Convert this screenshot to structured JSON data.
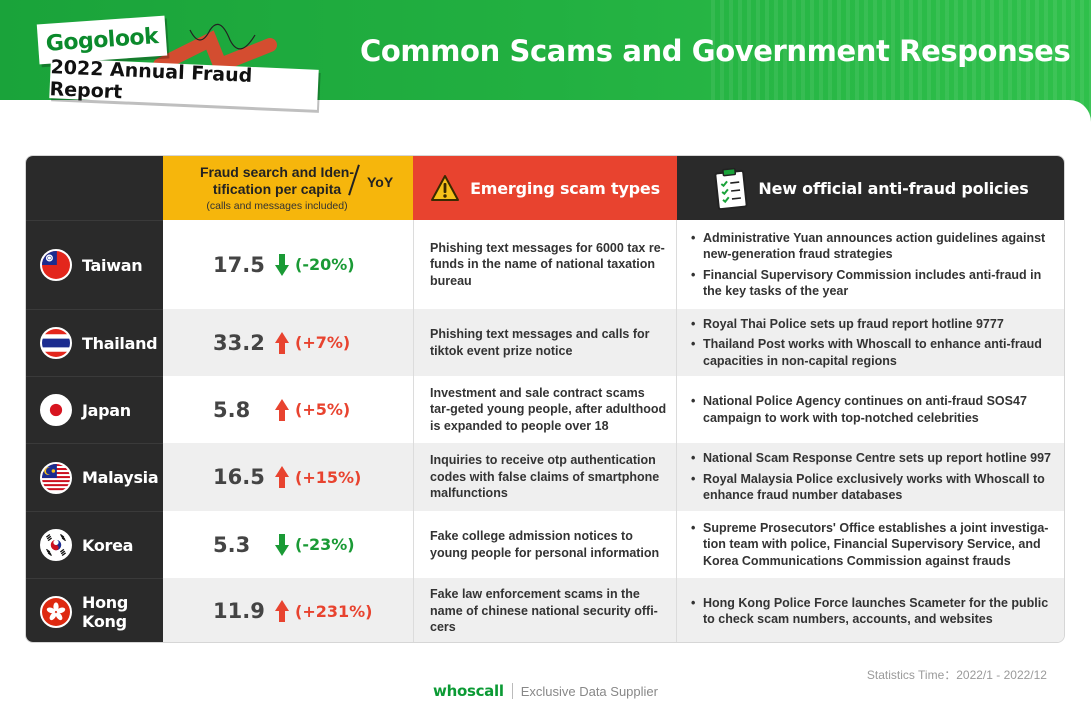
{
  "brand": {
    "logo_text": "Gogolook",
    "report_title": "2022 Annual Fraud Report"
  },
  "title": "Common Scams and Government Responses",
  "table": {
    "headers": {
      "search_line1": "Fraud search and Iden-",
      "search_line2": "tification per capita",
      "search_note": "(calls and messages included)",
      "yoy": "YoY",
      "scam": "Emerging scam types",
      "policy": "New official anti-fraud policies"
    },
    "rows": [
      {
        "country": "Taiwan",
        "flag_icon": "taiwan-flag-icon",
        "value": "17.5",
        "trend": "down",
        "change": "(-20%)",
        "scam": "Phishing text messages for 6000 tax re-funds in the name of national taxation bureau",
        "policies": [
          "Administrative Yuan announces action guidelines against new-generation fraud strategies",
          "Financial Supervisory Commission includes anti-fraud in the key tasks of the year"
        ]
      },
      {
        "country": "Thailand",
        "flag_icon": "thailand-flag-icon",
        "value": "33.2",
        "trend": "up",
        "change": "(+7%)",
        "scam": "Phishing text messages and calls for tiktok event prize notice",
        "policies": [
          "Royal Thai Police sets up fraud report hotline 9777",
          "Thailand Post works with Whoscall to enhance anti-fraud capacities in non-capital regions"
        ]
      },
      {
        "country": "Japan",
        "flag_icon": "japan-flag-icon",
        "value": "5.8",
        "trend": "up",
        "change": "(+5%)",
        "scam": "Investment and sale contract scams tar-geted young people, after adulthood is expanded to people over 18",
        "policies": [
          "National Police Agency continues on anti-fraud SOS47 campaign to work with top-notched celebrities"
        ]
      },
      {
        "country": "Malaysia",
        "flag_icon": "malaysia-flag-icon",
        "value": "16.5",
        "trend": "up",
        "change": "(+15%)",
        "scam": "Inquiries to receive otp authentication codes with false claims of smartphone malfunctions",
        "policies": [
          "National Scam Response Centre sets up report hotline 997",
          "Royal Malaysia Police exclusively works with Whoscall to enhance fraud number databases"
        ]
      },
      {
        "country": "Korea",
        "flag_icon": "korea-flag-icon",
        "value": "5.3",
        "trend": "down",
        "change": "(-23%)",
        "scam": "Fake college admission notices to young people for personal information",
        "policies": [
          "Supreme Prosecutors' Office establishes a joint investiga-tion team with police, Financial Supervisory Service, and Korea Communications Commission against frauds"
        ]
      },
      {
        "country": "Hong Kong",
        "flag_icon": "hong-kong-flag-icon",
        "value": "11.9",
        "trend": "up",
        "change": "(+231%)",
        "scam": "Fake law enforcement scams in the name of chinese national security offi-cers",
        "policies": [
          "Hong Kong Police Force launches Scameter for the public to check scam numbers, accounts, and websites"
        ]
      }
    ]
  },
  "stats_time": "Statistics Time：2022/1 - 2022/12",
  "footer": {
    "brand": "whoscall",
    "supplier": "Exclusive Data Supplier"
  },
  "colors": {
    "green": "#22b041",
    "yellow": "#f6b60c",
    "red": "#e8432f",
    "dark": "#2a2a2a",
    "up": "#e8432f",
    "down": "#1a9a35"
  }
}
